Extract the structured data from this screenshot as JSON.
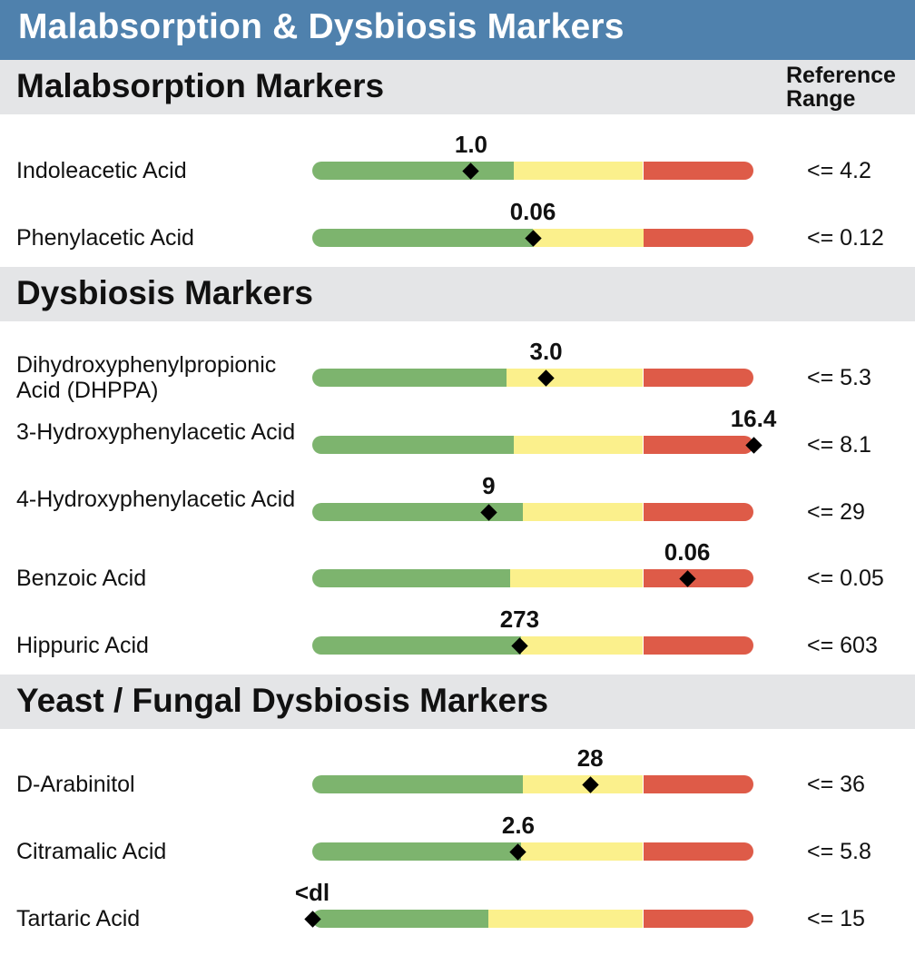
{
  "page_title": "Malabsorption & Dysbiosis Markers",
  "reference_header": [
    "Reference",
    "Range"
  ],
  "colors": {
    "title_bar": "#4f81ad",
    "section_bg": "#e4e5e7",
    "green": "#7db46e",
    "yellow": "#fbf08c",
    "red": "#de5b48",
    "marker": "#000000"
  },
  "sections": [
    {
      "title": "Malabsorption Markers"
    },
    {
      "title": "Dysbiosis Markers"
    },
    {
      "title": "Yeast / Fungal Dysbiosis Markers"
    }
  ],
  "chart_data": {
    "type": "range-bar",
    "title": "Malabsorption & Dysbiosis Markers",
    "markers": [
      {
        "section": 0,
        "name": "Indoleacetic Acid",
        "value_label": "1.0",
        "reference": "<= 4.2",
        "position": 0.36,
        "zones": [
          0.456,
          0.75,
          1.0
        ]
      },
      {
        "section": 0,
        "name": "Phenylacetic Acid",
        "value_label": "0.06",
        "reference": "<= 0.12",
        "position": 0.5,
        "zones": [
          0.5,
          0.75,
          1.0
        ]
      },
      {
        "section": 1,
        "name": "Dihydroxyphenylpropionic Acid (DHPPA)",
        "value_label": "3.0",
        "reference": "<= 5.3",
        "position": 0.53,
        "zones": [
          0.44,
          0.75,
          1.0
        ]
      },
      {
        "section": 1,
        "name": "3-Hydroxyphenylacetic Acid",
        "value_label": "16.4",
        "reference": "<= 8.1",
        "position": 1.0,
        "zones": [
          0.456,
          0.75,
          1.0
        ]
      },
      {
        "section": 1,
        "name": "4-Hydroxyphenylacetic Acid",
        "value_label": "9",
        "reference": "<= 29",
        "position": 0.4,
        "zones": [
          0.477,
          0.75,
          1.0
        ]
      },
      {
        "section": 1,
        "name": "Benzoic Acid",
        "value_label": "0.06",
        "reference": "<= 0.05",
        "position": 0.85,
        "zones": [
          0.448,
          0.75,
          1.0
        ]
      },
      {
        "section": 1,
        "name": "Hippuric Acid",
        "value_label": "273",
        "reference": "<= 603",
        "position": 0.47,
        "zones": [
          0.473,
          0.75,
          1.0
        ]
      },
      {
        "section": 2,
        "name": "D-Arabinitol",
        "value_label": "28",
        "reference": "<= 36",
        "position": 0.63,
        "zones": [
          0.477,
          0.75,
          1.0
        ]
      },
      {
        "section": 2,
        "name": "Citramalic Acid",
        "value_label": "2.6",
        "reference": "<= 5.8",
        "position": 0.467,
        "zones": [
          0.473,
          0.75,
          1.0
        ]
      },
      {
        "section": 2,
        "name": "Tartaric Acid",
        "value_label": "<dl",
        "reference": "<= 15",
        "position": 0.0,
        "zones": [
          0.4,
          0.75,
          1.0
        ]
      }
    ]
  }
}
